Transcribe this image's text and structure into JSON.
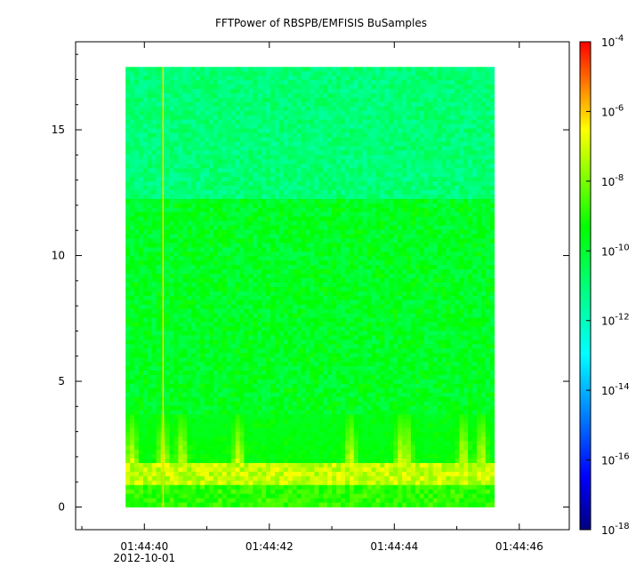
{
  "chart_data": {
    "type": "heatmap",
    "title": "FFTPower of RBSPB/EMFISIS  BuSamples",
    "xlabel": "",
    "ylabel": "",
    "x_ticks": [
      {
        "time": "01:44:40",
        "date": "2012-10-01"
      },
      {
        "time": "01:44:42",
        "date": ""
      },
      {
        "time": "01:44:44",
        "date": ""
      },
      {
        "time": "01:44:46",
        "date": ""
      }
    ],
    "x_range_seconds": [
      38.9,
      46.8
    ],
    "data_x_range_seconds": [
      39.7,
      45.6
    ],
    "y_ticks": [
      0,
      5,
      10,
      15
    ],
    "y_range": [
      -0.9,
      18.5
    ],
    "data_y_range": [
      0,
      17.5
    ],
    "colorbar": {
      "scale": "log",
      "range_exponents": [
        -18,
        -4
      ],
      "tick_labels": [
        {
          "base": "10",
          "exp": "-4"
        },
        {
          "base": "10",
          "exp": "-6"
        },
        {
          "base": "10",
          "exp": "-8"
        },
        {
          "base": "10",
          "exp": "-10"
        },
        {
          "base": "10",
          "exp": "-12"
        },
        {
          "base": "10",
          "exp": "-14"
        },
        {
          "base": "10",
          "exp": "-16"
        },
        {
          "base": "10",
          "exp": "-18"
        }
      ]
    },
    "features": {
      "strong_band_y": [
        0.8,
        1.7
      ],
      "band_max_exponent": -6.5,
      "background_low_exponent": -9.8,
      "background_high_exponent": -11.0,
      "transition_y": 12.2,
      "vertical_line_seconds": 40.3,
      "bursts_seconds": [
        39.8,
        40.3,
        40.6,
        41.5,
        43.3,
        44.1,
        44.2,
        45.1,
        45.4
      ]
    }
  }
}
